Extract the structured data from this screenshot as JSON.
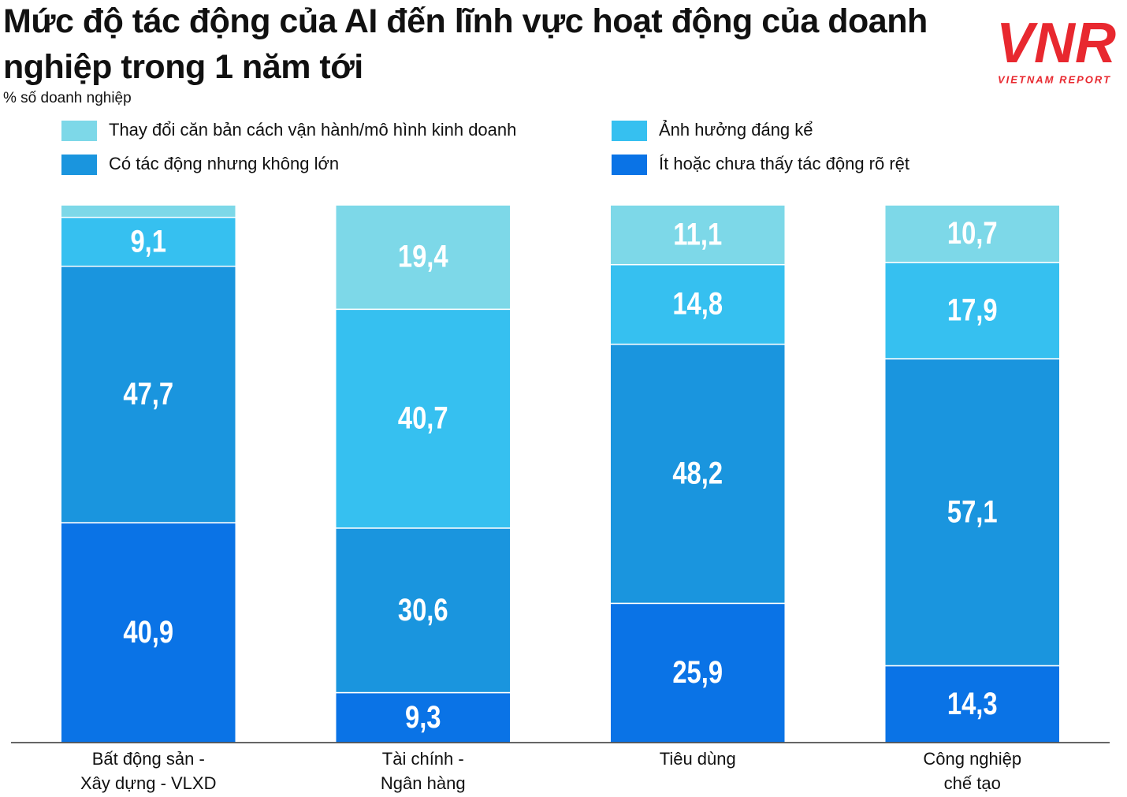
{
  "chart_data": {
    "type": "stacked_bar",
    "title": "Mức độ tác động của AI đến lĩnh vực hoạt động của doanh nghiệp trong 1 năm tới",
    "subtitle": "% số doanh nghiệp",
    "categories": [
      [
        "Bất động sản -",
        "Xây dựng - VLXD"
      ],
      [
        "Tài chính -",
        "Ngân hàng"
      ],
      [
        "Tiêu dùng"
      ],
      [
        "Công nghiệp",
        "chế tạo"
      ]
    ],
    "series": [
      {
        "name": "Thay đổi căn bản cách vận hành/mô hình kinh doanh",
        "color": "#7dd8e8",
        "values": [
          2.3,
          19.4,
          11.1,
          10.7
        ],
        "value_labels": [
          null,
          "19,4",
          "11,1",
          "10,7"
        ]
      },
      {
        "name": "Ảnh hưởng đáng kể",
        "color": "#36c0f0",
        "values": [
          9.1,
          40.7,
          14.8,
          17.9
        ],
        "value_labels": [
          "9,1",
          "40,7",
          "14,8",
          "17,9"
        ]
      },
      {
        "name": "Có tác động nhưng không lớn",
        "color": "#1a95de",
        "values": [
          47.7,
          30.6,
          48.2,
          57.1
        ],
        "value_labels": [
          "47,7",
          "30,6",
          "48,2",
          "57,1"
        ]
      },
      {
        "name": "Ít hoặc chưa thấy tác động rõ rệt",
        "color": "#0a73e6",
        "values": [
          40.9,
          9.3,
          25.9,
          14.3
        ],
        "value_labels": [
          "40,9",
          "9,3",
          "25,9",
          "14,3"
        ]
      }
    ],
    "ylim": [
      0,
      100
    ]
  },
  "logo": {
    "mark": "VNR",
    "text": "VIETNAM REPORT"
  }
}
